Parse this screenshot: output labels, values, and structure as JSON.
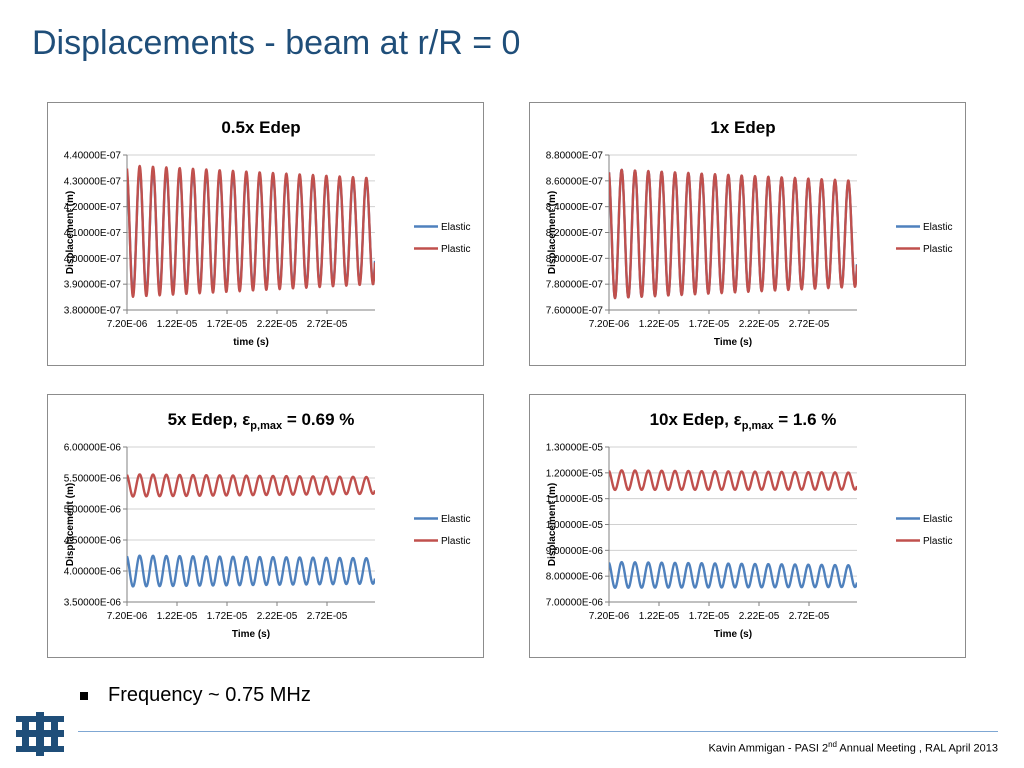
{
  "page": {
    "title": "Displacements - beam at r/R = 0",
    "bullet": "Frequency ~ 0.75 MHz",
    "footer_pre": "Kavin Ammigan - PASI 2",
    "footer_sup": "nd",
    "footer_post": "  Annual Meeting , RAL April 2013",
    "logo": "fermilab-logo-icon"
  },
  "colors": {
    "elastic": "#4f81bd",
    "plastic": "#c0504d",
    "title": "#1f4e79"
  },
  "chart_data": [
    {
      "type": "line",
      "title": "0.5x Edep",
      "title_main": "0.5x Edep",
      "title_sub": "",
      "title_tail": "",
      "xlabel": "time (s)",
      "ylabel": "Displacement (m)",
      "xlim": [
        7.2e-06,
        3.2e-05
      ],
      "ylim": [
        3.8e-07,
        4.4e-07
      ],
      "x_ticks": [
        "7.20E-06",
        "1.22E-05",
        "1.72E-05",
        "2.22E-05",
        "2.72E-05"
      ],
      "y_ticks": [
        "3.80000E-07",
        "3.90000E-07",
        "4.00000E-07",
        "4.10000E-07",
        "4.20000E-07",
        "4.30000E-07",
        "4.40000E-07"
      ],
      "legend_position": "right",
      "grid": "horizontal",
      "oscillation": {
        "cycles": 18.6,
        "phase": 0.3
      },
      "series": [
        {
          "name": "Elastic",
          "color": "#4f81bd",
          "center_start": 4.105e-07,
          "center_end": 4.105e-07,
          "amp_start": 2.4e-08,
          "amp_end": 1.95e-08
        },
        {
          "name": "Plastic",
          "color": "#c0504d",
          "center_start": 4.105e-07,
          "center_end": 4.105e-07,
          "amp_start": 2.55e-08,
          "amp_end": 2.05e-08
        }
      ]
    },
    {
      "type": "line",
      "title": "1x Edep",
      "title_main": "1x Edep",
      "title_sub": "",
      "title_tail": "",
      "xlabel": "Time (s)",
      "ylabel": "Displacement (m)",
      "xlim": [
        7.2e-06,
        3.2e-05
      ],
      "ylim": [
        7.6e-07,
        8.8e-07
      ],
      "x_ticks": [
        "7.20E-06",
        "1.22E-05",
        "1.72E-05",
        "2.22E-05",
        "2.72E-05"
      ],
      "y_ticks": [
        "7.60000E-07",
        "7.80000E-07",
        "8.00000E-07",
        "8.20000E-07",
        "8.40000E-07",
        "8.60000E-07",
        "8.80000E-07"
      ],
      "legend_position": "right",
      "grid": "horizontal",
      "oscillation": {
        "cycles": 18.6,
        "phase": 0.3
      },
      "series": [
        {
          "name": "Elastic",
          "color": "#4f81bd",
          "center_start": 8.19e-07,
          "center_end": 8.19e-07,
          "amp_start": 5e-08,
          "amp_end": 4e-08
        },
        {
          "name": "Plastic",
          "color": "#c0504d",
          "center_start": 8.19e-07,
          "center_end": 8.19e-07,
          "amp_start": 5e-08,
          "amp_end": 4.1e-08
        }
      ]
    },
    {
      "type": "line",
      "title": "5x Edep, εp,max = 0.69 %",
      "title_main": "5x Edep, ε",
      "title_sub": "p,max",
      "title_tail": " = 0.69 %",
      "xlabel": "Time (s)",
      "ylabel": "Displacement (m)",
      "xlim": [
        7.2e-06,
        3.2e-05
      ],
      "ylim": [
        3.5e-06,
        6e-06
      ],
      "x_ticks": [
        "7.20E-06",
        "1.22E-05",
        "1.72E-05",
        "2.22E-05",
        "2.72E-05"
      ],
      "y_ticks": [
        "3.50000E-06",
        "4.00000E-06",
        "4.50000E-06",
        "5.00000E-06",
        "5.50000E-06",
        "6.00000E-06"
      ],
      "legend_position": "right",
      "grid": "horizontal",
      "oscillation": {
        "cycles": 18.6,
        "phase": 0.3
      },
      "series": [
        {
          "name": "Elastic",
          "color": "#4f81bd",
          "center_start": 4e-06,
          "center_end": 4e-06,
          "amp_start": 2.5e-07,
          "amp_end": 2.05e-07
        },
        {
          "name": "Plastic",
          "color": "#c0504d",
          "center_start": 5.38e-06,
          "center_end": 5.38e-06,
          "amp_start": 1.8e-07,
          "amp_end": 1.35e-07
        }
      ]
    },
    {
      "type": "line",
      "title": "10x Edep, εp,max = 1.6 %",
      "title_main": "10x Edep, ε",
      "title_sub": "p,max",
      "title_tail": " = 1.6 %",
      "xlabel": "Time (s)",
      "ylabel": "Displacement (m)",
      "xlim": [
        7.2e-06,
        3.2e-05
      ],
      "ylim": [
        7e-06,
        1.3e-05
      ],
      "x_ticks": [
        "7.20E-06",
        "1.22E-05",
        "1.72E-05",
        "2.22E-05",
        "2.72E-05"
      ],
      "y_ticks": [
        "7.00000E-06",
        "8.00000E-06",
        "9.00000E-06",
        "1.00000E-05",
        "1.10000E-05",
        "1.20000E-05",
        "1.30000E-05"
      ],
      "legend_position": "right",
      "grid": "horizontal",
      "oscillation": {
        "cycles": 18.6,
        "phase": 0.3
      },
      "series": [
        {
          "name": "Elastic",
          "color": "#4f81bd",
          "center_start": 8.05e-06,
          "center_end": 8e-06,
          "amp_start": 5e-07,
          "amp_end": 4.2e-07
        },
        {
          "name": "Plastic",
          "color": "#c0504d",
          "center_start": 1.172e-05,
          "center_end": 1.168e-05,
          "amp_start": 3.8e-07,
          "amp_end": 3.3e-07
        }
      ]
    }
  ]
}
